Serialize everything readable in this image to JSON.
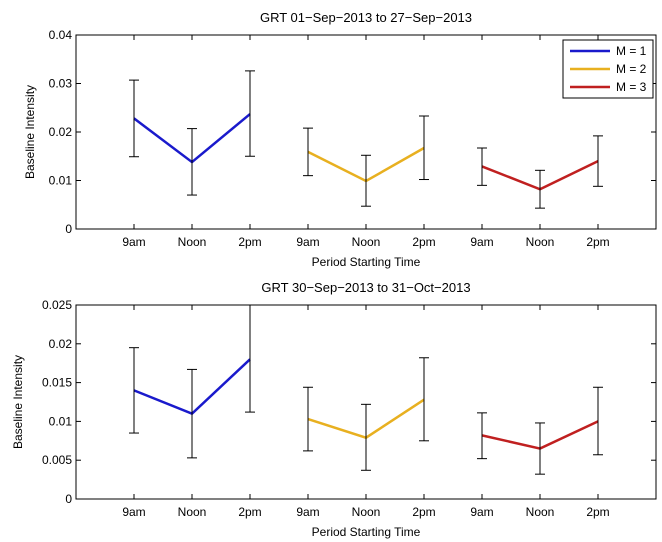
{
  "colors": {
    "M1": "#1a1acc",
    "M2": "#e8b020",
    "M3": "#c02020",
    "errorbar": "#000000"
  },
  "chart_data": [
    {
      "type": "line",
      "title": "GRT 01−Sep−2013 to 27−Sep−2013",
      "xlabel": "Period Starting Time",
      "ylabel": "Baseline Intensity",
      "categories": [
        "9am",
        "Noon",
        "2pm",
        "9am",
        "Noon",
        "2pm",
        "9am",
        "Noon",
        "2pm"
      ],
      "ylim": [
        0,
        0.04
      ],
      "yticks": [
        "0",
        "0.01",
        "0.02",
        "0.03",
        "0.04"
      ],
      "legend": {
        "placement": "top-right",
        "entries": [
          "M = 1",
          "M = 2",
          "M = 3"
        ]
      },
      "series": [
        {
          "name": "M = 1",
          "x": [
            1,
            2,
            3
          ],
          "values": [
            0.0228,
            0.0138,
            0.0237
          ],
          "err_low": [
            0.0149,
            0.007,
            0.015
          ],
          "err_high": [
            0.0307,
            0.0207,
            0.0326
          ]
        },
        {
          "name": "M = 2",
          "x": [
            4,
            5,
            6
          ],
          "values": [
            0.0159,
            0.0099,
            0.0167
          ],
          "err_low": [
            0.011,
            0.0047,
            0.0102
          ],
          "err_high": [
            0.0208,
            0.0152,
            0.0233
          ]
        },
        {
          "name": "M = 3",
          "x": [
            7,
            8,
            9
          ],
          "values": [
            0.0129,
            0.0082,
            0.014
          ],
          "err_low": [
            0.009,
            0.0043,
            0.0088
          ],
          "err_high": [
            0.0167,
            0.0121,
            0.0192
          ]
        }
      ]
    },
    {
      "type": "line",
      "title": "GRT 30−Sep−2013 to 31−Oct−2013",
      "xlabel": "Period Starting Time",
      "ylabel": "Baseline Intensity",
      "categories": [
        "9am",
        "Noon",
        "2pm",
        "9am",
        "Noon",
        "2pm",
        "9am",
        "Noon",
        "2pm"
      ],
      "ylim": [
        0,
        0.025
      ],
      "yticks": [
        "0",
        "0.005",
        "0.01",
        "0.015",
        "0.02",
        "0.025"
      ],
      "series": [
        {
          "name": "M = 1",
          "x": [
            1,
            2,
            3
          ],
          "values": [
            0.014,
            0.011,
            0.018
          ],
          "err_low": [
            0.0085,
            0.0053,
            0.0112
          ],
          "err_high": [
            0.0195,
            0.0167,
            0.025
          ]
        },
        {
          "name": "M = 2",
          "x": [
            4,
            5,
            6
          ],
          "values": [
            0.0103,
            0.0079,
            0.0128
          ],
          "err_low": [
            0.0062,
            0.0037,
            0.0075
          ],
          "err_high": [
            0.0144,
            0.0122,
            0.0182
          ]
        },
        {
          "name": "M = 3",
          "x": [
            7,
            8,
            9
          ],
          "values": [
            0.0082,
            0.0065,
            0.01
          ],
          "err_low": [
            0.0052,
            0.0032,
            0.0057
          ],
          "err_high": [
            0.0111,
            0.0098,
            0.0144
          ]
        }
      ]
    }
  ]
}
